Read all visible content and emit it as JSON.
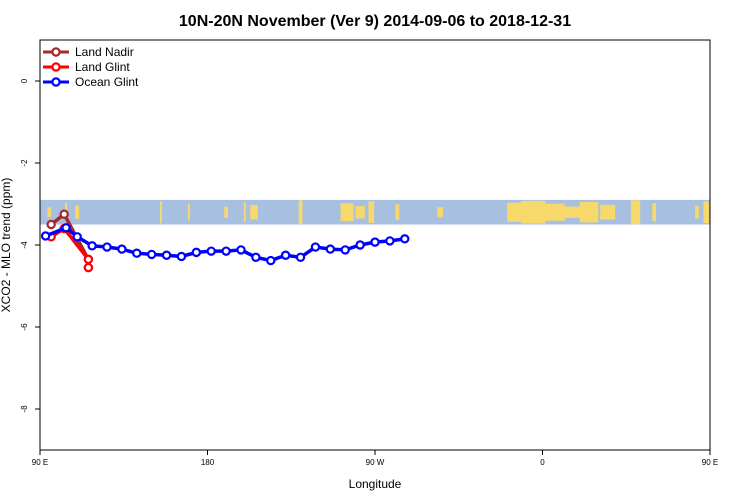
{
  "chart_data": {
    "type": "line",
    "title": "10N-20N November (Ver 9)   2014-09-06 to 2018-12-31",
    "xlabel": "Longitude",
    "ylabel": "XCO2 - MLO trend (ppm)",
    "xlim": [
      90,
      450
    ],
    "ylim": [
      -9,
      1
    ],
    "xticks": [
      {
        "value": 90,
        "label": "90 E"
      },
      {
        "value": 180,
        "label": "180"
      },
      {
        "value": 270,
        "label": "90 W"
      },
      {
        "value": 360,
        "label": "0"
      },
      {
        "value": 450,
        "label": "90 E"
      },
      {
        "value": 540,
        "label": "180"
      }
    ],
    "yticks": [
      0,
      -2,
      -4,
      -6,
      -8
    ],
    "legend": {
      "position": "top-left"
    },
    "map_band": {
      "y_range": [
        -3.5,
        -2.9
      ],
      "ocean_color": "#a8c0e0",
      "land_color": "#f7d96b"
    },
    "series": [
      {
        "name": "Land Nadir",
        "color": "#a52a2a",
        "x": [
          96,
          103,
          116,
          116
        ],
        "y": [
          -3.5,
          -3.25,
          -4.35,
          -4.55
        ]
      },
      {
        "name": "Land Glint",
        "color": "#ff0000",
        "x": [
          96,
          103,
          116,
          116
        ],
        "y": [
          -3.8,
          -3.6,
          -4.35,
          -4.55
        ]
      },
      {
        "name": "Ocean Glint",
        "color": "#0000ff",
        "x": [
          93,
          104,
          110,
          118,
          126,
          134,
          142,
          150,
          158,
          166,
          174,
          182,
          190,
          198,
          206,
          214,
          222,
          230,
          238,
          246,
          254,
          262,
          270,
          278,
          286
        ],
        "y": [
          -3.78,
          -3.58,
          -3.8,
          -4.02,
          -4.05,
          -4.1,
          -4.2,
          -4.23,
          -4.25,
          -4.28,
          -4.18,
          -4.15,
          -4.15,
          -4.12,
          -4.3,
          -4.38,
          -4.25,
          -4.3,
          -4.05,
          -4.1,
          -4.12,
          -4.0,
          -3.93,
          -3.9,
          -3.85
        ]
      }
    ]
  }
}
